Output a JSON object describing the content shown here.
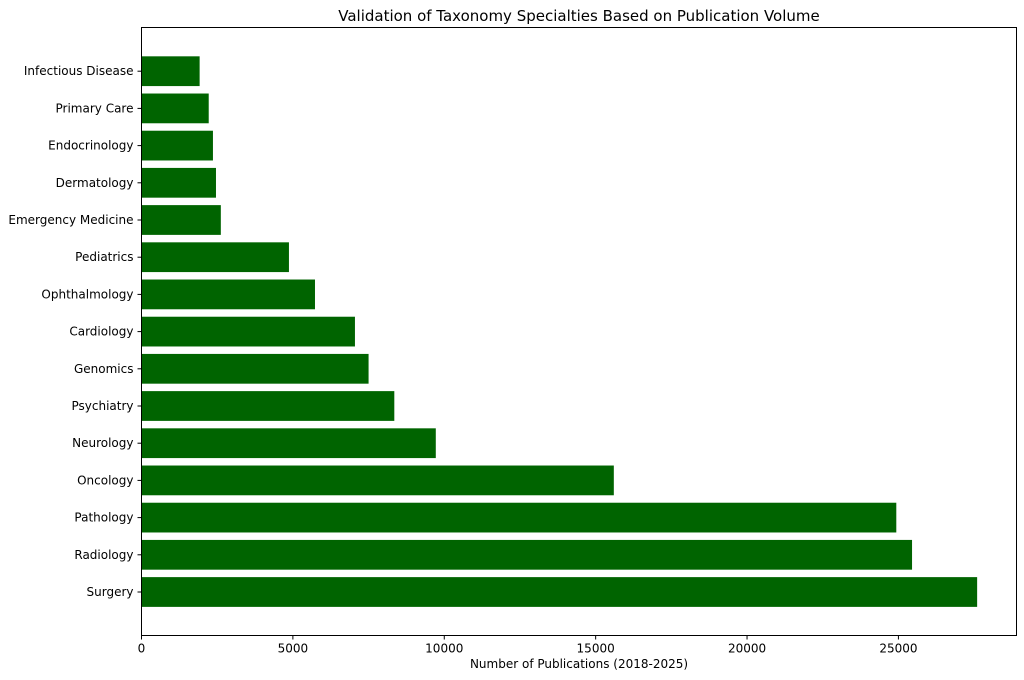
{
  "chart_data": {
    "type": "bar",
    "orientation": "horizontal",
    "title": "Validation of Taxonomy Specialties Based on Publication Volume",
    "xlabel": "Number of Publications (2018-2025)",
    "ylabel": "",
    "xlim": [
      0,
      28900
    ],
    "xticks": [
      0,
      5000,
      10000,
      15000,
      20000,
      25000
    ],
    "bar_color": "#006400",
    "grid": false,
    "categories": [
      "Surgery",
      "Radiology",
      "Pathology",
      "Oncology",
      "Neurology",
      "Psychiatry",
      "Genomics",
      "Cardiology",
      "Ophthalmology",
      "Pediatrics",
      "Emergency Medicine",
      "Dermatology",
      "Endocrinology",
      "Primary Care",
      "Infectious Disease"
    ],
    "values": [
      27600,
      25450,
      24930,
      15600,
      9720,
      8350,
      7500,
      7050,
      5730,
      4870,
      2620,
      2460,
      2360,
      2220,
      1920
    ]
  }
}
